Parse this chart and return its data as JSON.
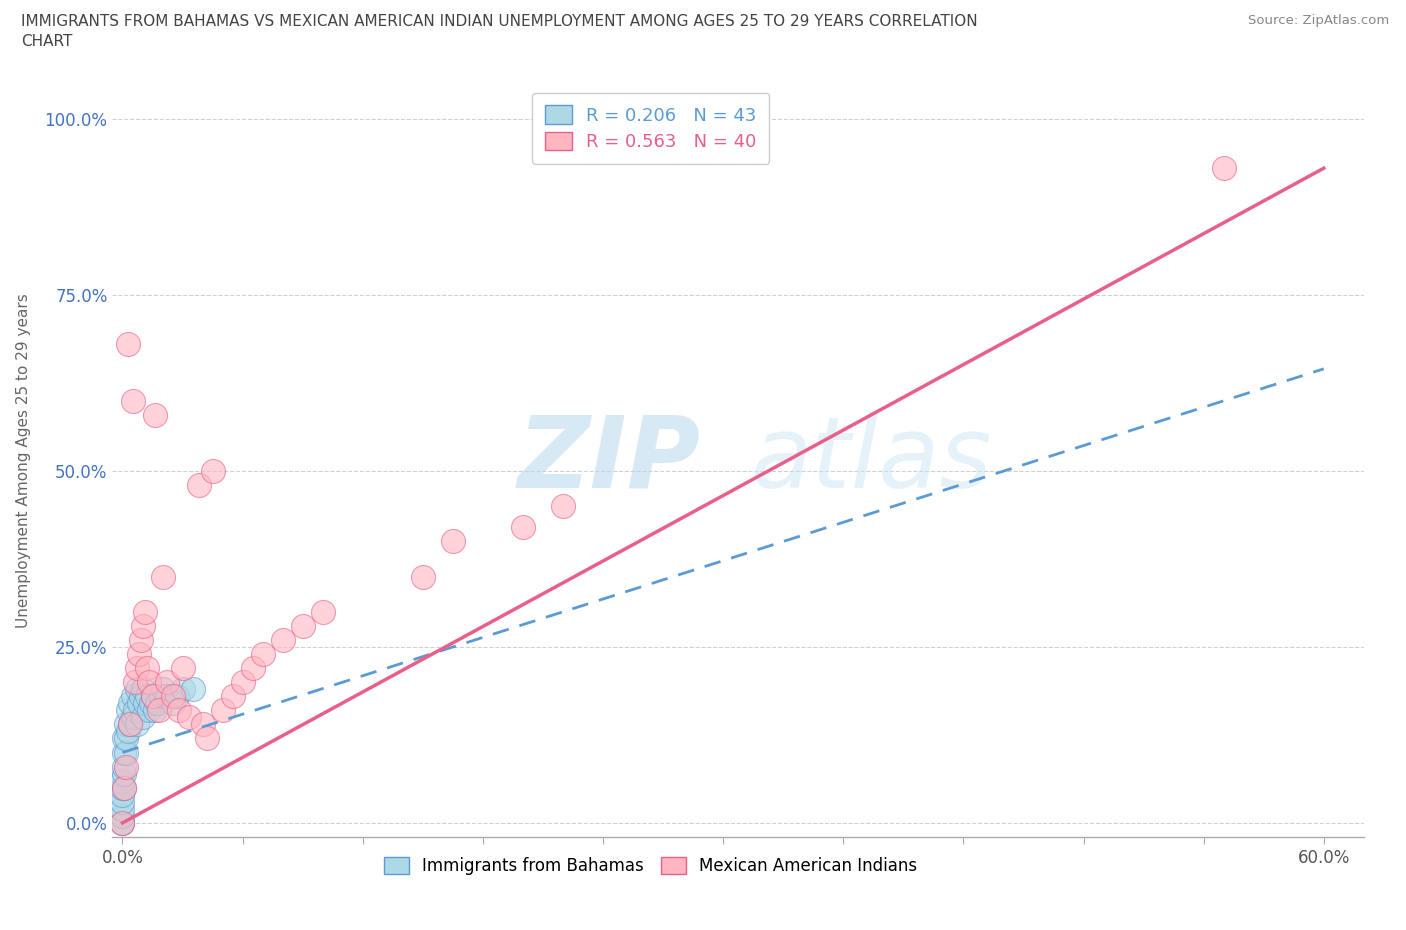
{
  "title_line1": "IMMIGRANTS FROM BAHAMAS VS MEXICAN AMERICAN INDIAN UNEMPLOYMENT AMONG AGES 25 TO 29 YEARS CORRELATION",
  "title_line2": "CHART",
  "source": "Source: ZipAtlas.com",
  "ylabel": "Unemployment Among Ages 25 to 29 years",
  "xlim": [
    -0.005,
    0.62
  ],
  "ylim": [
    -0.02,
    1.05
  ],
  "r_bahamas": 0.206,
  "n_bahamas": 43,
  "r_mexican": 0.563,
  "n_mexican": 40,
  "color_bahamas": "#add8e6",
  "color_mexican": "#ffb6c1",
  "line_color_bahamas": "#5b9bd5",
  "line_color_mexican": "#e8608a",
  "watermark_zip": "ZIP",
  "watermark_atlas": "atlas",
  "bahamas_x": [
    0.0,
    0.0,
    0.0,
    0.0,
    0.0,
    0.0,
    0.0,
    0.0,
    0.001,
    0.001,
    0.001,
    0.001,
    0.001,
    0.002,
    0.002,
    0.002,
    0.003,
    0.003,
    0.004,
    0.004,
    0.005,
    0.005,
    0.006,
    0.007,
    0.007,
    0.008,
    0.009,
    0.01,
    0.01,
    0.011,
    0.012,
    0.013,
    0.014,
    0.015,
    0.016,
    0.017,
    0.019,
    0.02,
    0.022,
    0.025,
    0.027,
    0.03,
    0.035
  ],
  "bahamas_y": [
    0.0,
    0.0,
    0.01,
    0.02,
    0.03,
    0.04,
    0.05,
    0.06,
    0.05,
    0.07,
    0.08,
    0.1,
    0.12,
    0.1,
    0.12,
    0.14,
    0.13,
    0.16,
    0.14,
    0.17,
    0.15,
    0.18,
    0.16,
    0.14,
    0.19,
    0.17,
    0.18,
    0.15,
    0.19,
    0.17,
    0.18,
    0.16,
    0.17,
    0.18,
    0.16,
    0.17,
    0.18,
    0.19,
    0.18,
    0.17,
    0.18,
    0.19,
    0.19
  ],
  "mexican_x": [
    0.0,
    0.001,
    0.002,
    0.003,
    0.004,
    0.005,
    0.006,
    0.007,
    0.008,
    0.009,
    0.01,
    0.011,
    0.012,
    0.013,
    0.015,
    0.016,
    0.018,
    0.02,
    0.022,
    0.025,
    0.028,
    0.03,
    0.033,
    0.038,
    0.04,
    0.042,
    0.045,
    0.05,
    0.055,
    0.06,
    0.065,
    0.07,
    0.08,
    0.09,
    0.1,
    0.15,
    0.165,
    0.2,
    0.22,
    0.55
  ],
  "mexican_y": [
    0.0,
    0.05,
    0.08,
    0.68,
    0.14,
    0.6,
    0.2,
    0.22,
    0.24,
    0.26,
    0.28,
    0.3,
    0.22,
    0.2,
    0.18,
    0.58,
    0.16,
    0.35,
    0.2,
    0.18,
    0.16,
    0.22,
    0.15,
    0.48,
    0.14,
    0.12,
    0.5,
    0.16,
    0.18,
    0.2,
    0.22,
    0.24,
    0.26,
    0.28,
    0.3,
    0.35,
    0.4,
    0.42,
    0.45,
    0.93
  ],
  "bah_line_x0": 0.0,
  "bah_line_x1": 0.6,
  "bah_line_y0": 0.1,
  "bah_line_y1": 0.645,
  "mex_line_x0": 0.0,
  "mex_line_x1": 0.6,
  "mex_line_y0": 0.0,
  "mex_line_y1": 0.93
}
